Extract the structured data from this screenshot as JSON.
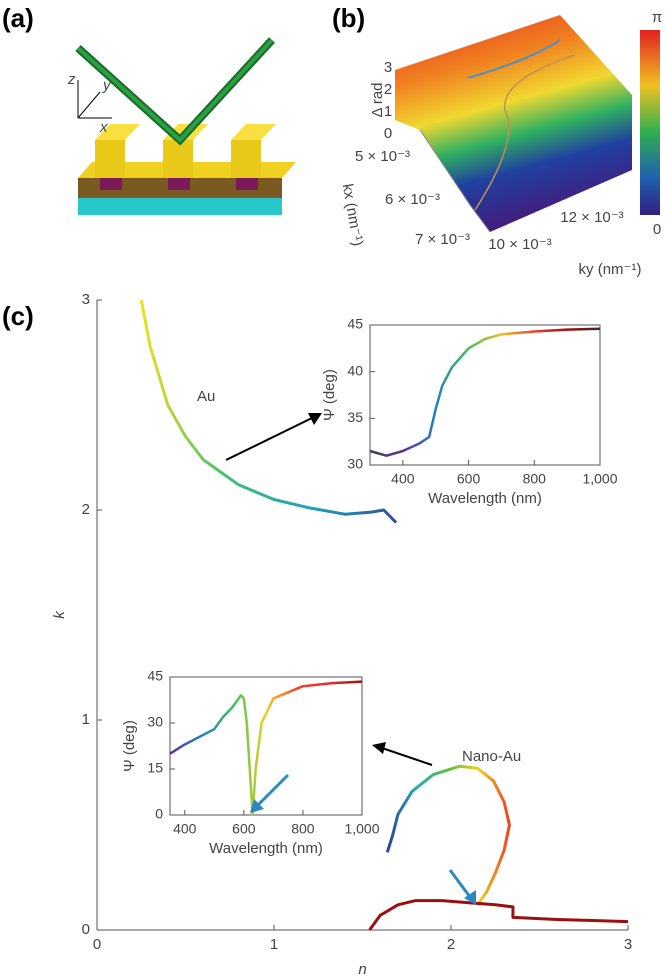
{
  "panel_labels": [
    "(a)",
    "(b)",
    "(c)"
  ],
  "panel_a": {
    "axes": [
      "z",
      "y",
      "x"
    ]
  },
  "panel_b": {
    "z_label": "Δ rad",
    "z_ticks": [
      "3",
      "2",
      "1",
      "0"
    ],
    "kx_label": "kx (nm⁻¹)",
    "kx_ticks": [
      "5 × 10⁻³",
      "6 × 10⁻³",
      "7 × 10⁻³"
    ],
    "ky_label": "ky (nm⁻¹)",
    "ky_ticks": [
      "10 × 10⁻³",
      "12 × 10⁻³"
    ],
    "colorbar_labels": [
      "π",
      "0"
    ]
  },
  "chart_data": [
    {
      "type": "line",
      "xlabel": "n",
      "ylabel": "k",
      "xlim": [
        0,
        3
      ],
      "ylim": [
        0,
        3
      ],
      "xticks": [
        0,
        1,
        2,
        3
      ],
      "yticks": [
        0,
        1,
        2,
        3
      ],
      "series": [
        {
          "name": "Au",
          "colors": [
            "#f0e020",
            "#40c070",
            "#20a0c0",
            "#3050a0"
          ],
          "x": [
            0.25,
            0.3,
            0.4,
            0.5,
            0.6,
            0.8,
            1.0,
            1.2,
            1.4,
            1.55,
            1.62,
            1.69
          ],
          "values": [
            3.0,
            2.78,
            2.5,
            2.35,
            2.24,
            2.12,
            2.05,
            2.01,
            1.98,
            1.99,
            2.0,
            1.94
          ]
        },
        {
          "name": "Nano-Au",
          "colors": [
            "#3040a0",
            "#20b0b0",
            "#60c040",
            "#f0d020",
            "#f04020"
          ],
          "x": [
            1.64,
            1.67,
            1.7,
            1.78,
            1.9,
            2.05,
            2.15,
            2.24,
            2.3,
            2.33,
            2.3,
            2.25,
            2.2,
            2.15
          ],
          "values": [
            0.37,
            0.45,
            0.55,
            0.66,
            0.74,
            0.78,
            0.77,
            0.71,
            0.61,
            0.5,
            0.38,
            0.27,
            0.18,
            0.12
          ]
        },
        {
          "colors": [
            "#9a1010",
            "#9a1010"
          ],
          "x": [
            1.54,
            1.6,
            1.7,
            1.8,
            1.95,
            2.1,
            2.25,
            2.35,
            2.35,
            2.6,
            2.8,
            3.0
          ],
          "values": [
            0,
            0.07,
            0.12,
            0.14,
            0.14,
            0.13,
            0.12,
            0.11,
            0.06,
            0.05,
            0.045,
            0.04
          ]
        }
      ]
    },
    {
      "type": "line",
      "xlabel": "Wavelength (nm)",
      "ylabel": "Ψ (deg)",
      "xlim": [
        300,
        1000
      ],
      "ylim": [
        30,
        45
      ],
      "xticks": [
        400,
        600,
        800,
        {
          "value": 1000,
          "label": "1,000"
        }
      ],
      "yticks": [
        30,
        35,
        40,
        45
      ],
      "series": [
        {
          "colors": [
            "#404040",
            "#6030a0",
            "#2080c0",
            "#40c060",
            "#f0c020",
            "#f04030",
            "#a01010",
            "#303030"
          ],
          "x": [
            300,
            350,
            400,
            450,
            480,
            500,
            520,
            550,
            600,
            650,
            700,
            800,
            900,
            1000
          ],
          "values": [
            31.5,
            31,
            31.5,
            32.3,
            33,
            36,
            38.5,
            40.5,
            42.5,
            43.5,
            44,
            44.3,
            44.5,
            44.6
          ]
        }
      ]
    },
    {
      "type": "line",
      "xlabel": "Wavelength (nm)",
      "ylabel": "Ψ (deg)",
      "xlim": [
        350,
        1000
      ],
      "ylim": [
        0,
        45
      ],
      "xticks": [
        400,
        600,
        800,
        {
          "value": 1000,
          "label": "1,000"
        }
      ],
      "yticks": [
        0,
        15,
        30,
        45
      ],
      "series": [
        {
          "colors": [
            "#6030a0",
            "#2080c0",
            "#40c060",
            "#f0d020",
            "#f04030",
            "#e03030",
            "#a01010"
          ],
          "x": [
            350,
            400,
            450,
            500,
            530,
            560,
            590,
            600,
            610,
            620,
            630,
            640,
            660,
            700,
            800,
            900,
            1000
          ],
          "values": [
            20,
            23,
            25.5,
            28,
            32,
            35,
            39,
            38,
            30,
            15,
            0,
            15,
            30,
            38,
            42,
            43,
            43.5
          ]
        }
      ]
    }
  ]
}
